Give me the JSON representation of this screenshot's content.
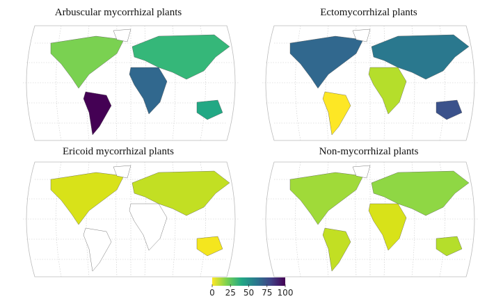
{
  "panels": [
    {
      "title": "Arbuscular  mycorrhizal plants"
    },
    {
      "title": "Ectomycorrhizal  plants"
    },
    {
      "title": "Ericoid  mycorrhizal  plants"
    },
    {
      "title": "Non-mycorrhizal  plants"
    }
  ],
  "colorbar": {
    "lim": [
      0,
      100
    ],
    "ticks": [
      0,
      25,
      50,
      75,
      100
    ],
    "colors": [
      "#fde725",
      "#7ad151",
      "#22a884",
      "#2a788e",
      "#414487",
      "#440154"
    ]
  }
}
